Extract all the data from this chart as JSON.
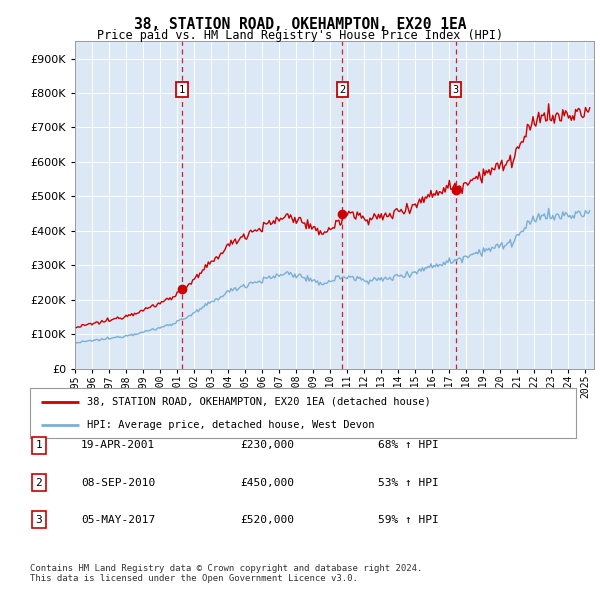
{
  "title": "38, STATION ROAD, OKEHAMPTON, EX20 1EA",
  "subtitle": "Price paid vs. HM Land Registry's House Price Index (HPI)",
  "sale_info": [
    {
      "num": "1",
      "date": "19-APR-2001",
      "price": "£230,000",
      "pct": "68%",
      "year": 2001,
      "month": 4,
      "price_val": 230000
    },
    {
      "num": "2",
      "date": "08-SEP-2010",
      "price": "£450,000",
      "pct": "53%",
      "year": 2010,
      "month": 9,
      "price_val": 450000
    },
    {
      "num": "3",
      "date": "05-MAY-2017",
      "price": "£520,000",
      "pct": "59%",
      "year": 2017,
      "month": 5,
      "price_val": 520000
    }
  ],
  "hpi_line_color": "#7bafd4",
  "price_line_color": "#cc0000",
  "vline_color": "#cc0000",
  "plot_bg": "#dce8f5",
  "legend_label_price": "38, STATION ROAD, OKEHAMPTON, EX20 1EA (detached house)",
  "legend_label_hpi": "HPI: Average price, detached house, West Devon",
  "footer": "Contains HM Land Registry data © Crown copyright and database right 2024.\nThis data is licensed under the Open Government Licence v3.0.",
  "ylim": [
    0,
    950000
  ],
  "yticks": [
    0,
    100000,
    200000,
    300000,
    400000,
    500000,
    600000,
    700000,
    800000,
    900000
  ],
  "xlabel_years": [
    1995,
    1996,
    1997,
    1998,
    1999,
    2000,
    2001,
    2002,
    2003,
    2004,
    2005,
    2006,
    2007,
    2008,
    2009,
    2010,
    2011,
    2012,
    2013,
    2014,
    2015,
    2016,
    2017,
    2018,
    2019,
    2020,
    2021,
    2022,
    2023,
    2024,
    2025
  ]
}
